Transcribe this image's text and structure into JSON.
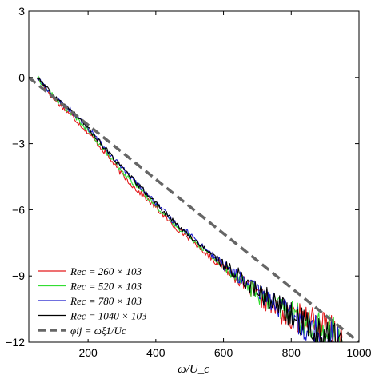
{
  "chart_data": {
    "type": "line",
    "title": "",
    "xlabel": "ω/U_c",
    "ylabel": "",
    "xlim": [
      25,
      1000
    ],
    "ylim": [
      -12,
      3
    ],
    "x_ticks": [
      200,
      400,
      600,
      800,
      1000
    ],
    "y_ticks": [
      3,
      0,
      -3,
      -6,
      -9,
      -12
    ],
    "x_tick_labels": [
      "200",
      "400",
      "600",
      "800",
      "1000"
    ],
    "y_tick_labels": [
      "3",
      "0",
      "−3",
      "−6",
      "−9",
      "−12"
    ],
    "grid": false,
    "legend_position": "bottom-left",
    "series": [
      {
        "name": "Re_c = 260 × 10³",
        "legend_label": "Rec = 260 × 103",
        "color": "#e31a1c",
        "style": "solid",
        "x": [
          50,
          100,
          150,
          200,
          250,
          300,
          350,
          400,
          450,
          500,
          550,
          600,
          650,
          700,
          750,
          800,
          850,
          900,
          950
        ],
        "y": [
          0.0,
          -1.0,
          -1.7,
          -2.5,
          -3.4,
          -4.4,
          -5.2,
          -5.9,
          -6.7,
          -7.3,
          -8.0,
          -8.6,
          -9.2,
          -9.9,
          -10.4,
          -11.0,
          -10.8,
          -11.4,
          -11.8
        ]
      },
      {
        "name": "Re_c = 520 × 10³",
        "legend_label": "Rec = 520 × 103",
        "color": "#33dd33",
        "style": "solid",
        "x": [
          50,
          100,
          150,
          200,
          250,
          300,
          350,
          400,
          450,
          500,
          550,
          600,
          650,
          700,
          750,
          800,
          850,
          900,
          950
        ],
        "y": [
          0.0,
          -0.9,
          -1.6,
          -2.4,
          -3.3,
          -4.3,
          -5.0,
          -5.8,
          -6.6,
          -7.2,
          -7.9,
          -8.6,
          -9.1,
          -9.8,
          -10.3,
          -10.7,
          -11.2,
          -11.5,
          -11.9
        ]
      },
      {
        "name": "Re_c = 780 × 10³",
        "legend_label": "Rec = 780 × 103",
        "color": "#1a1acc",
        "style": "solid",
        "x": [
          50,
          100,
          150,
          200,
          250,
          300,
          350,
          400,
          450,
          500,
          550,
          600,
          650,
          700,
          750,
          800,
          850,
          900,
          950
        ],
        "y": [
          0.0,
          -0.9,
          -1.5,
          -2.3,
          -3.2,
          -4.1,
          -4.9,
          -5.7,
          -6.5,
          -7.1,
          -7.8,
          -8.5,
          -9.1,
          -9.7,
          -10.2,
          -10.8,
          -11.3,
          -11.6,
          -12.0
        ]
      },
      {
        "name": "Re_c = 1040 × 10³",
        "legend_label": "Rec = 1040 × 103",
        "color": "#000000",
        "style": "solid",
        "x": [
          50,
          100,
          150,
          200,
          250,
          300,
          350,
          400,
          450,
          500,
          550,
          600,
          650,
          700,
          750,
          800,
          850,
          900,
          950
        ],
        "y": [
          0.0,
          -0.9,
          -1.5,
          -2.3,
          -3.2,
          -4.1,
          -4.9,
          -5.7,
          -6.5,
          -7.2,
          -7.8,
          -8.5,
          -9.0,
          -9.7,
          -10.2,
          -10.8,
          -11.3,
          -11.7,
          -12.0
        ]
      },
      {
        "name": "φ_ij = ωξ₁/U_c",
        "legend_label": "φij = ωξ1/Uc",
        "color": "#666666",
        "style": "dashed",
        "x": [
          25,
          1000
        ],
        "y": [
          0.0,
          -12.0
        ]
      }
    ]
  }
}
